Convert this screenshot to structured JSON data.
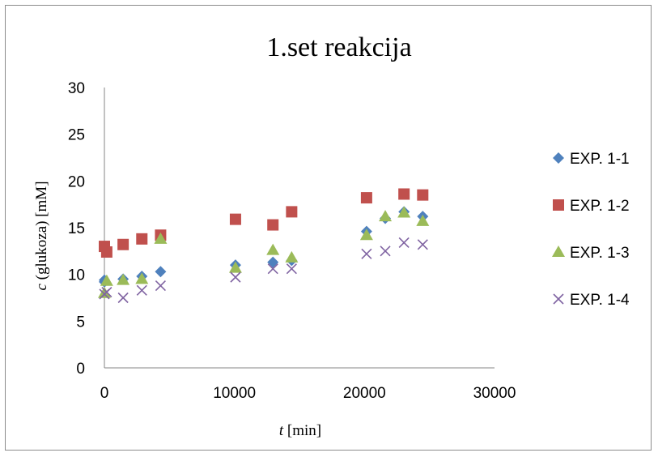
{
  "chart_data": {
    "type": "scatter",
    "title": "1.set reakcija",
    "xlabel_italic": "t",
    "xlabel_rest": " [min]",
    "ylabel_italic": "c",
    "ylabel_rest": " (glukoza) [mM]",
    "xlim": [
      0,
      30000
    ],
    "ylim": [
      0,
      30
    ],
    "xticks": [
      0,
      10000,
      20000,
      30000
    ],
    "yticks": [
      0,
      5,
      10,
      15,
      20,
      25,
      30
    ],
    "grid": false,
    "legend_position": "right",
    "series": [
      {
        "name": "EXP. 1-1",
        "marker": "diamond",
        "color": "#4f81bd",
        "points": [
          [
            0,
            9.4
          ],
          [
            0,
            9.2
          ],
          [
            1440,
            9.5
          ],
          [
            2880,
            9.8
          ],
          [
            4320,
            10.3
          ],
          [
            10080,
            11.0
          ],
          [
            12960,
            11.3
          ],
          [
            14400,
            11.5
          ],
          [
            20160,
            14.6
          ],
          [
            21600,
            16.0
          ],
          [
            23040,
            16.7
          ],
          [
            24480,
            16.2
          ]
        ]
      },
      {
        "name": "EXP. 1-2",
        "marker": "square",
        "color": "#c0504d",
        "points": [
          [
            0,
            13.0
          ],
          [
            180,
            12.4
          ],
          [
            1440,
            13.2
          ],
          [
            2880,
            13.8
          ],
          [
            4320,
            14.2
          ],
          [
            10080,
            15.9
          ],
          [
            12960,
            15.3
          ],
          [
            14400,
            16.7
          ],
          [
            20160,
            18.2
          ],
          [
            23040,
            18.6
          ],
          [
            24480,
            18.5
          ]
        ]
      },
      {
        "name": "EXP. 1-3",
        "marker": "triangle",
        "color": "#9bbb59",
        "points": [
          [
            0,
            8.0
          ],
          [
            180,
            9.3
          ],
          [
            1440,
            9.4
          ],
          [
            2880,
            9.5
          ],
          [
            4320,
            13.8
          ],
          [
            10080,
            10.7
          ],
          [
            12960,
            12.6
          ],
          [
            14400,
            11.8
          ],
          [
            20160,
            14.2
          ],
          [
            21600,
            16.2
          ],
          [
            23040,
            16.6
          ],
          [
            24480,
            15.7
          ]
        ]
      },
      {
        "name": "EXP. 1-4",
        "marker": "x",
        "color": "#8064a2",
        "points": [
          [
            0,
            7.9
          ],
          [
            180,
            8.1
          ],
          [
            1440,
            7.5
          ],
          [
            2880,
            8.3
          ],
          [
            4320,
            8.8
          ],
          [
            10080,
            9.7
          ],
          [
            12960,
            10.6
          ],
          [
            14400,
            10.6
          ],
          [
            20160,
            12.2
          ],
          [
            21600,
            12.5
          ],
          [
            23040,
            13.4
          ],
          [
            24480,
            13.2
          ]
        ]
      }
    ]
  }
}
